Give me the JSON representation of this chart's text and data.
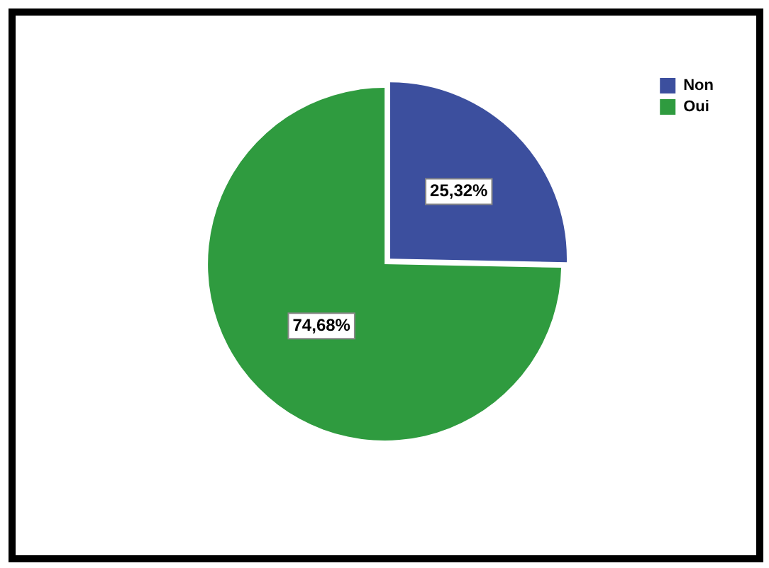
{
  "chart_data": {
    "type": "pie",
    "categories": [
      "Non",
      "Oui"
    ],
    "values": [
      25.32,
      74.68
    ],
    "colors": [
      "#3c4f9e",
      "#2f9b3f"
    ],
    "value_labels": [
      "25,32%",
      "74,68%"
    ],
    "legend": "top right"
  }
}
